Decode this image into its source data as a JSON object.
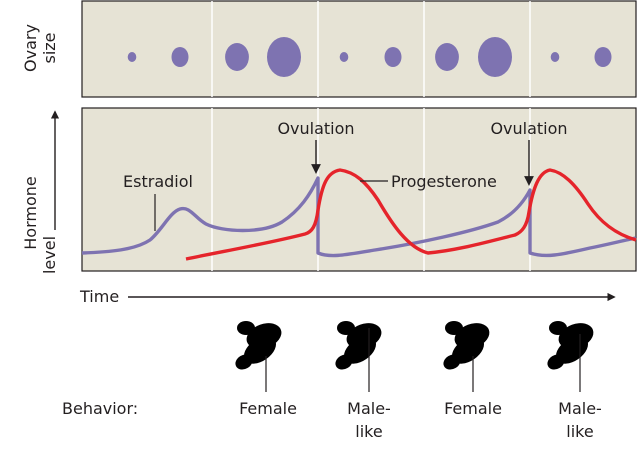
{
  "colors": {
    "panel_bg": "#e6e3d5",
    "divider": "#ffffff",
    "follicle": "#7e73b1",
    "estradiol": "#7e73b1",
    "progesterone": "#e5242b",
    "text": "#231f20",
    "lizard_brown": "#8b5a2b",
    "lizard_gray": "#a7a9ac"
  },
  "ovary_panel": {
    "axis_label_line1": "Ovary",
    "axis_label_line2": "size",
    "follicle_sizes": [
      {
        "cycle": 1,
        "relative_size": 0.25
      },
      {
        "cycle": 1,
        "relative_size": 0.5
      },
      {
        "cycle": 1,
        "relative_size": 0.7
      },
      {
        "cycle": 1,
        "relative_size": 1.0
      },
      {
        "cycle": 2,
        "relative_size": 0.25
      },
      {
        "cycle": 2,
        "relative_size": 0.5
      },
      {
        "cycle": 2,
        "relative_size": 0.7
      },
      {
        "cycle": 2,
        "relative_size": 1.0
      },
      {
        "cycle": 3,
        "relative_size": 0.25
      },
      {
        "cycle": 3,
        "relative_size": 0.5
      }
    ]
  },
  "hormone_panel": {
    "axis_label_line1": "Hormone",
    "axis_label_line2": "level",
    "estradiol_label": "Estradiol",
    "progesterone_label": "Progesterone",
    "ovulation_labels": [
      "Ovulation",
      "Ovulation"
    ]
  },
  "time_axis": {
    "label": "Time"
  },
  "behavior": {
    "row_label": "Behavior:",
    "stages": [
      {
        "line1": "Female",
        "line2": ""
      },
      {
        "line1": "Male-",
        "line2": "like"
      },
      {
        "line1": "Female",
        "line2": ""
      },
      {
        "line1": "Male-",
        "line2": "like"
      }
    ]
  }
}
